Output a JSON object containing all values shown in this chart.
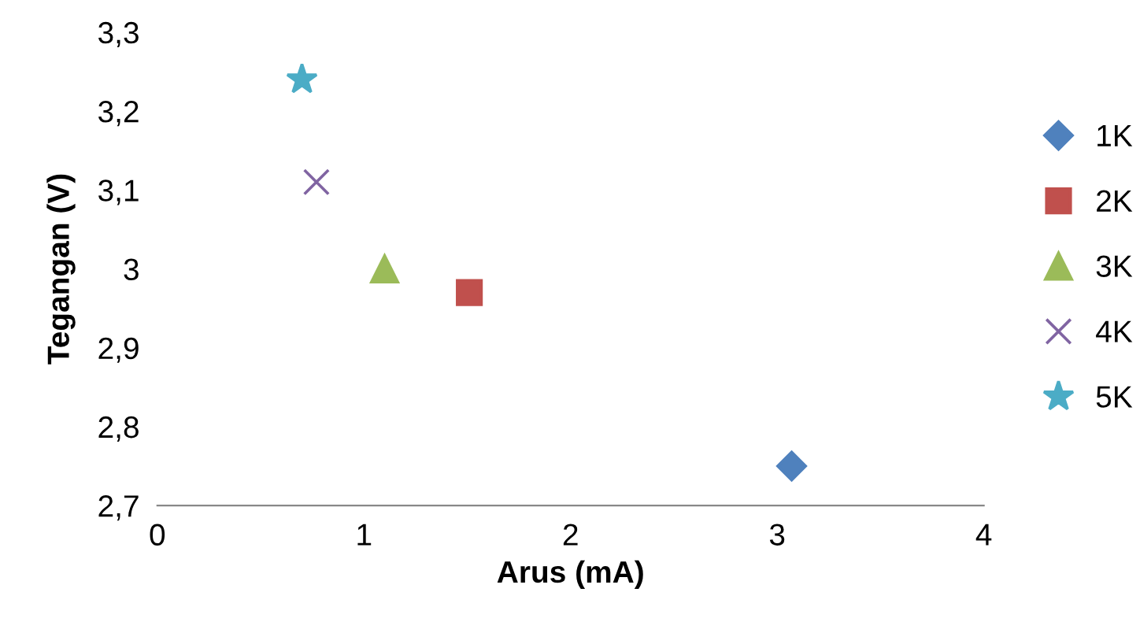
{
  "chart_data": {
    "type": "scatter",
    "xlabel": "Arus (mA)",
    "ylabel": "Tegangan (V)",
    "series": [
      {
        "name": "1K",
        "color": "#4f81bd",
        "marker": "diamond",
        "x": [
          3.07
        ],
        "values": [
          2.75
        ]
      },
      {
        "name": "2K",
        "color": "#c0504d",
        "marker": "square",
        "x": [
          1.51
        ],
        "values": [
          2.97
        ]
      },
      {
        "name": "3K",
        "color": "#9bbb59",
        "marker": "triangle",
        "x": [
          1.1
        ],
        "values": [
          3.0
        ]
      },
      {
        "name": "4K",
        "color": "#8064a2",
        "marker": "cross",
        "x": [
          0.77
        ],
        "values": [
          3.11
        ]
      },
      {
        "name": "5K",
        "color": "#4bacc6",
        "marker": "star",
        "x": [
          0.7
        ],
        "values": [
          3.24
        ]
      }
    ],
    "xlim": [
      0,
      4
    ],
    "xticks": [
      0,
      1,
      2,
      3,
      4
    ],
    "ylim": [
      2.7,
      3.3
    ],
    "yticks": [
      {
        "value": 2.7,
        "label": "2,7"
      },
      {
        "value": 2.8,
        "label": "2,8"
      },
      {
        "value": 2.9,
        "label": "2,9"
      },
      3,
      {
        "value": 3.1,
        "label": "3,1"
      },
      {
        "value": 3.2,
        "label": "3,2"
      },
      {
        "value": 3.3,
        "label": "3,3"
      }
    ],
    "grid": false,
    "legend": "right"
  }
}
